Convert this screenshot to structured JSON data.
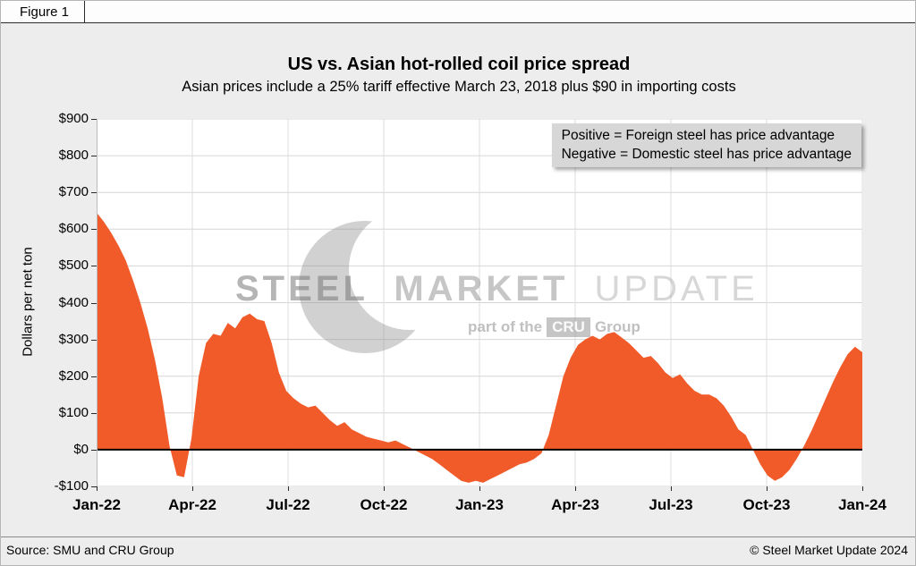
{
  "figure_label": "Figure 1",
  "header": {
    "title": "US vs. Asian hot-rolled coil price spread",
    "subtitle": "Asian prices include a 25% tariff effective March 23, 2018 plus $90 in importing costs"
  },
  "legend": {
    "line1": "Positive = Foreign steel has price advantage",
    "line2": "Negative = Domestic steel has price advantage"
  },
  "watermark": {
    "word1": "STEEL",
    "word2": "MARKET",
    "word3": "UPDATE",
    "sub_prefix": "part of the",
    "sub_badge": "CRU",
    "sub_suffix": "Group"
  },
  "footer": {
    "source": "Source: SMU and CRU Group",
    "copyright": "© Steel Market Update 2024"
  },
  "chart_data": {
    "type": "area",
    "title": "US vs. Asian hot-rolled coil price spread",
    "subtitle": "Asian prices include a 25% tariff effective March 23, 2018 plus $90 in importing costs",
    "xlabel": "",
    "ylabel": "Dollars per net ton",
    "ylim": [
      -100,
      900
    ],
    "ytick_step": 100,
    "ytick_labels_top_to_bottom": [
      "$900",
      "$800",
      "$700",
      "$600",
      "$500",
      "$400",
      "$300",
      "$200",
      "$100",
      "$0",
      "-$100"
    ],
    "xtick_labels": [
      "Jan-22",
      "Apr-22",
      "Jul-22",
      "Oct-22",
      "Jan-23",
      "Apr-23",
      "Jul-23",
      "Oct-23",
      "Jan-24"
    ],
    "grid": true,
    "legend_position": "top-right",
    "baseline": 0,
    "fill_color": "#f15a29",
    "zero_line_color": "#000000",
    "series": [
      {
        "name": "US vs. Asian hot-rolled coil price spread ($ per net ton)",
        "x_start": "Jan-2022",
        "x_end": "Jan-2024",
        "x_interval": "weekly (approximate, read from graph)",
        "values": [
          645,
          620,
          590,
          555,
          515,
          460,
          400,
          330,
          245,
          140,
          10,
          -70,
          -75,
          30,
          200,
          290,
          315,
          310,
          345,
          330,
          360,
          370,
          355,
          350,
          290,
          210,
          160,
          140,
          125,
          115,
          120,
          100,
          80,
          65,
          75,
          55,
          45,
          35,
          30,
          25,
          20,
          25,
          15,
          5,
          -5,
          -15,
          -25,
          -40,
          -55,
          -70,
          -85,
          -90,
          -85,
          -90,
          -80,
          -70,
          -60,
          -50,
          -40,
          -35,
          -25,
          -10,
          40,
          120,
          200,
          250,
          285,
          300,
          310,
          300,
          315,
          320,
          305,
          290,
          270,
          250,
          255,
          235,
          210,
          195,
          205,
          180,
          160,
          150,
          150,
          140,
          120,
          90,
          55,
          40,
          0,
          -40,
          -70,
          -85,
          -75,
          -55,
          -25,
          10,
          50,
          95,
          140,
          185,
          225,
          260,
          280,
          265
        ]
      }
    ]
  }
}
